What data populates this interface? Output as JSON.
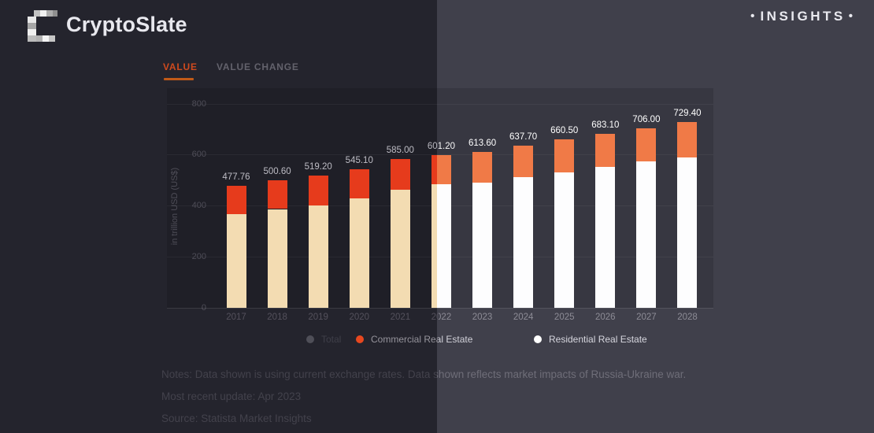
{
  "colors": {
    "bg_left": "#24242d",
    "bg_right": "#40404b",
    "logo_text": "#e8e8ee",
    "insights": "#e9e9ef",
    "tab_active": "#cf4a1e",
    "tab_underline": "#c05a18",
    "tab_inactive": "#63626c",
    "text_dim": "#4e4d57",
    "label_left": "#bdbcc4",
    "label_right": "#ffffff",
    "year_left": "#54515c",
    "year_right": "#8d8c96",
    "legend_total": "#3f3f49",
    "legend_dim": "#98969e",
    "legend_bright": "#d6d6de",
    "notes_dim": "#43424c",
    "notes_bright": "#6f6e79",
    "bar_cream": "#f3dcb2",
    "bar_white": "#fdfdfe",
    "bar_red": "#e63b1c",
    "bar_orange": "#f07a47",
    "dot_total": "#4f4f58",
    "dot_commercial": "#e8481f",
    "dot_residential": "#ffffff"
  },
  "header": {
    "logo_text": "CryptoSlate",
    "insights_label": "INSIGHTS",
    "bullet": "•"
  },
  "tabs": {
    "value_label": "VALUE",
    "value_change_label": "VALUE CHANGE"
  },
  "chart_data": {
    "type": "bar",
    "stacked": true,
    "title": "",
    "categories": [
      "2017",
      "2018",
      "2019",
      "2020",
      "2021",
      "2022",
      "2023",
      "2024",
      "2025",
      "2026",
      "2027",
      "2028"
    ],
    "total_labels": [
      "477.76",
      "500.60",
      "519.20",
      "545.10",
      "585.00",
      "601.20",
      "613.60",
      "637.70",
      "660.50",
      "683.10",
      "706.00",
      "729.40"
    ],
    "series": [
      {
        "name": "Residential Real Estate",
        "values": [
          369.0,
          388.0,
          403.0,
          431.0,
          465.0,
          484.0,
          493.0,
          512.0,
          533.0,
          552.0,
          576.0,
          592.0
        ]
      },
      {
        "name": "Commercial Real Estate",
        "values": [
          108.8,
          112.6,
          116.2,
          114.1,
          120.0,
          117.2,
          120.6,
          125.7,
          127.5,
          131.1,
          130.0,
          137.4
        ]
      }
    ],
    "legend": [
      {
        "label": "Total",
        "disabled": true
      },
      {
        "label": "Commercial Real Estate",
        "disabled": false
      },
      {
        "label": "Residential Real Estate",
        "disabled": false
      }
    ],
    "ylabel": "in trillion USD (US$)",
    "yticks": [
      0,
      200,
      400,
      600,
      800
    ],
    "ylim": [
      0,
      800
    ],
    "grid": true,
    "legend_position": "bottom"
  },
  "notes": {
    "line1": "Notes: Data shown is using current exchange rates. Data shown reflects market impacts of Russia-Ukraine war.",
    "line2": "Most recent update: Apr 2023",
    "line3": "Source: Statista Market Insights"
  }
}
